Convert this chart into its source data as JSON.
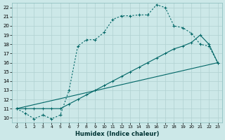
{
  "xlabel": "Humidex (Indice chaleur)",
  "bg_color": "#cce8e8",
  "grid_color": "#b0d0d0",
  "line_color": "#006666",
  "xlim": [
    -0.5,
    23.5
  ],
  "ylim": [
    9.5,
    22.5
  ],
  "xticks": [
    0,
    1,
    2,
    3,
    4,
    5,
    6,
    7,
    8,
    9,
    10,
    11,
    12,
    13,
    14,
    15,
    16,
    17,
    18,
    19,
    20,
    21,
    22,
    23
  ],
  "yticks": [
    10,
    11,
    12,
    13,
    14,
    15,
    16,
    17,
    18,
    19,
    20,
    21,
    22
  ],
  "line1_x": [
    0,
    1,
    2,
    3,
    4,
    5,
    6,
    7,
    8,
    9,
    10,
    11,
    12,
    13,
    14,
    15,
    16,
    17,
    18,
    19,
    20,
    21,
    22,
    23
  ],
  "line1_y": [
    11,
    10.5,
    9.9,
    10.3,
    9.9,
    10.3,
    13.0,
    17.8,
    18.5,
    18.5,
    19.3,
    20.7,
    21.1,
    21.1,
    21.2,
    21.2,
    22.3,
    22.0,
    20.0,
    19.8,
    19.2,
    18.0,
    17.8,
    16.0
  ],
  "line2_x": [
    0,
    23
  ],
  "line2_y": [
    11,
    16.0
  ],
  "line3_x": [
    0,
    1,
    2,
    3,
    4,
    5,
    6,
    7,
    8,
    9,
    10,
    11,
    12,
    13,
    14,
    15,
    16,
    17,
    18,
    19,
    20,
    21,
    22,
    23
  ],
  "line3_y": [
    11,
    11,
    11,
    11,
    11,
    11,
    11.5,
    12.0,
    12.5,
    13.0,
    13.5,
    14.0,
    14.5,
    15.0,
    15.5,
    16.0,
    16.5,
    17.0,
    17.5,
    17.8,
    18.2,
    19.0,
    18.0,
    16.0
  ]
}
